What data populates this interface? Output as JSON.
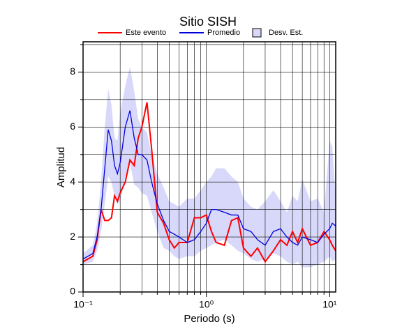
{
  "chart_data": {
    "type": "line",
    "title": "Sitio SISH",
    "x_label": "Periodo (s)",
    "y_label": "Amplitud",
    "log_x": true,
    "grid": true,
    "legend": "top",
    "xlim": [
      0.1,
      11.2
    ],
    "ylim": [
      0,
      9.1
    ],
    "xticks": [
      {
        "value": 0.1,
        "label": "10⁻¹"
      },
      {
        "value": 1,
        "label": "10⁰"
      },
      {
        "value": 10,
        "label": "10¹"
      }
    ],
    "xminor": [
      0.2,
      0.3,
      0.4,
      0.5,
      0.6,
      0.7,
      0.8,
      0.9,
      2,
      3,
      4,
      5,
      6,
      7,
      8,
      9
    ],
    "yticks": [
      0,
      2,
      4,
      6,
      8
    ],
    "yminor": [
      1,
      3,
      5,
      7,
      9
    ],
    "x": [
      0.1,
      0.12,
      0.13,
      0.14,
      0.15,
      0.16,
      0.17,
      0.18,
      0.19,
      0.2,
      0.22,
      0.24,
      0.26,
      0.28,
      0.3,
      0.33,
      0.36,
      0.4,
      0.45,
      0.5,
      0.55,
      0.6,
      0.7,
      0.8,
      0.9,
      1.0,
      1.1,
      1.2,
      1.4,
      1.6,
      1.8,
      2.0,
      2.3,
      2.6,
      3,
      3.5,
      4,
      4.5,
      5,
      5.5,
      6,
      7,
      8,
      9,
      10,
      10.5,
      11.2
    ],
    "band": {
      "name": "Desv. Est.",
      "color": "#d8d8fa",
      "upper": [
        1.4,
        1.7,
        2.5,
        4.0,
        6.0,
        7.4,
        6.8,
        5.6,
        5.5,
        6.5,
        7.5,
        8.2,
        7.3,
        6.3,
        6.0,
        5.8,
        5.0,
        4.3,
        3.8,
        3.3,
        3.2,
        3.1,
        3.4,
        3.4,
        3.7,
        4.0,
        4.2,
        4.5,
        4.5,
        4.2,
        4.0,
        3.4,
        3.1,
        3.0,
        3.3,
        3.7,
        3.3,
        2.9,
        3.5,
        3.3,
        4.1,
        3.3,
        3.4,
        2.9,
        5.5,
        5.3,
        3.4
      ],
      "lower": [
        1.0,
        1.1,
        1.5,
        2.2,
        3.2,
        4.2,
        4.0,
        3.5,
        3.2,
        3.3,
        4.2,
        4.7,
        3.9,
        3.8,
        3.6,
        3.5,
        2.9,
        2.2,
        1.6,
        1.5,
        1.3,
        1.2,
        1.3,
        1.3,
        1.5,
        1.6,
        1.7,
        1.8,
        1.9,
        1.7,
        1.5,
        1.4,
        1.2,
        1.1,
        1.2,
        1.4,
        1.3,
        1.1,
        1.0,
        1.1,
        0.9,
        0.9,
        1.0,
        1.1,
        1.3,
        1.1,
        1.2
      ]
    },
    "series": [
      {
        "name": "Este evento",
        "color": "#ff0000",
        "values": [
          1.1,
          1.3,
          1.9,
          3.0,
          2.6,
          2.6,
          2.7,
          3.5,
          3.3,
          3.6,
          4.0,
          4.8,
          4.6,
          5.6,
          6.0,
          6.9,
          5.2,
          2.9,
          2.5,
          1.9,
          1.6,
          1.8,
          1.8,
          2.7,
          2.7,
          2.8,
          2.2,
          1.8,
          1.7,
          2.6,
          2.7,
          1.6,
          1.3,
          1.6,
          1.1,
          1.5,
          1.9,
          1.7,
          2.2,
          1.8,
          2.3,
          1.7,
          1.8,
          2.2,
          1.9,
          1.7,
          1.5
        ]
      },
      {
        "name": "Promedio",
        "color": "#0000dd",
        "values": [
          1.2,
          1.4,
          2.0,
          3.0,
          4.5,
          5.9,
          5.5,
          4.6,
          4.3,
          4.7,
          6.0,
          6.6,
          5.6,
          5.0,
          5.0,
          4.8,
          4.0,
          3.2,
          2.6,
          2.2,
          2.1,
          2.0,
          1.8,
          1.9,
          2.2,
          2.5,
          3.0,
          3.0,
          2.9,
          2.8,
          2.8,
          2.3,
          2.2,
          1.9,
          1.7,
          2.2,
          2.3,
          2.0,
          1.8,
          1.7,
          2.0,
          1.9,
          1.8,
          2.1,
          2.3,
          2.5,
          2.4
        ]
      }
    ]
  }
}
